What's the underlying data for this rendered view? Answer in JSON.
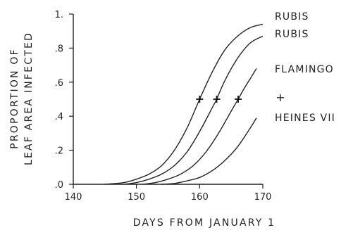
{
  "chart_data": {
    "type": "line",
    "xlabel": "DAYS FROM JANUARY 1",
    "ylabel_lines": [
      "PROPORTION OF",
      "LEAF AREA INFECTED"
    ],
    "xlim": [
      140,
      170
    ],
    "ylim": [
      0,
      1
    ],
    "x_ticks": [
      {
        "value": 140,
        "label": "140"
      },
      {
        "value": 150,
        "label": "150"
      },
      {
        "value": 160,
        "label": "160"
      },
      {
        "value": 170,
        "label": "170"
      }
    ],
    "y_ticks": [
      {
        "value": 0,
        "label": ".0"
      },
      {
        "value": 0.2,
        "label": ".2"
      },
      {
        "value": 0.4,
        "label": ".4"
      },
      {
        "value": 0.6,
        "label": ".6"
      },
      {
        "value": 0.8,
        "label": ".8"
      },
      {
        "value": 1,
        "label": "1."
      }
    ],
    "grid": false,
    "series": [
      {
        "name": "RUBIS",
        "x": [
          145,
          148,
          150,
          152,
          154,
          156,
          158,
          160,
          162,
          164,
          166,
          168,
          170
        ],
        "y": [
          0,
          0.01,
          0.03,
          0.06,
          0.11,
          0.2,
          0.33,
          0.5,
          0.66,
          0.79,
          0.87,
          0.92,
          0.94
        ]
      },
      {
        "name": "RUBIS",
        "x": [
          148,
          150,
          152,
          154,
          156,
          158,
          160,
          162,
          162.7,
          164,
          166,
          168,
          170
        ],
        "y": [
          0,
          0.01,
          0.03,
          0.06,
          0.11,
          0.19,
          0.31,
          0.45,
          0.5,
          0.61,
          0.74,
          0.83,
          0.87
        ]
      },
      {
        "name": "FLAMINGO",
        "x": [
          151,
          153,
          155,
          157,
          159,
          161,
          163,
          165,
          166.1,
          167,
          168,
          169
        ],
        "y": [
          0,
          0.01,
          0.03,
          0.06,
          0.11,
          0.19,
          0.3,
          0.43,
          0.5,
          0.56,
          0.62,
          0.68
        ]
      },
      {
        "name": "HEINES VII",
        "x": [
          154,
          156,
          158,
          160,
          162,
          164,
          166,
          168,
          169
        ],
        "y": [
          0,
          0.005,
          0.02,
          0.04,
          0.08,
          0.14,
          0.22,
          0.33,
          0.39
        ]
      }
    ],
    "markers": [
      {
        "x": 160,
        "y": 0.5
      },
      {
        "x": 162.7,
        "y": 0.5
      },
      {
        "x": 166.1,
        "y": 0.5
      }
    ],
    "marker_legend": "+"
  }
}
